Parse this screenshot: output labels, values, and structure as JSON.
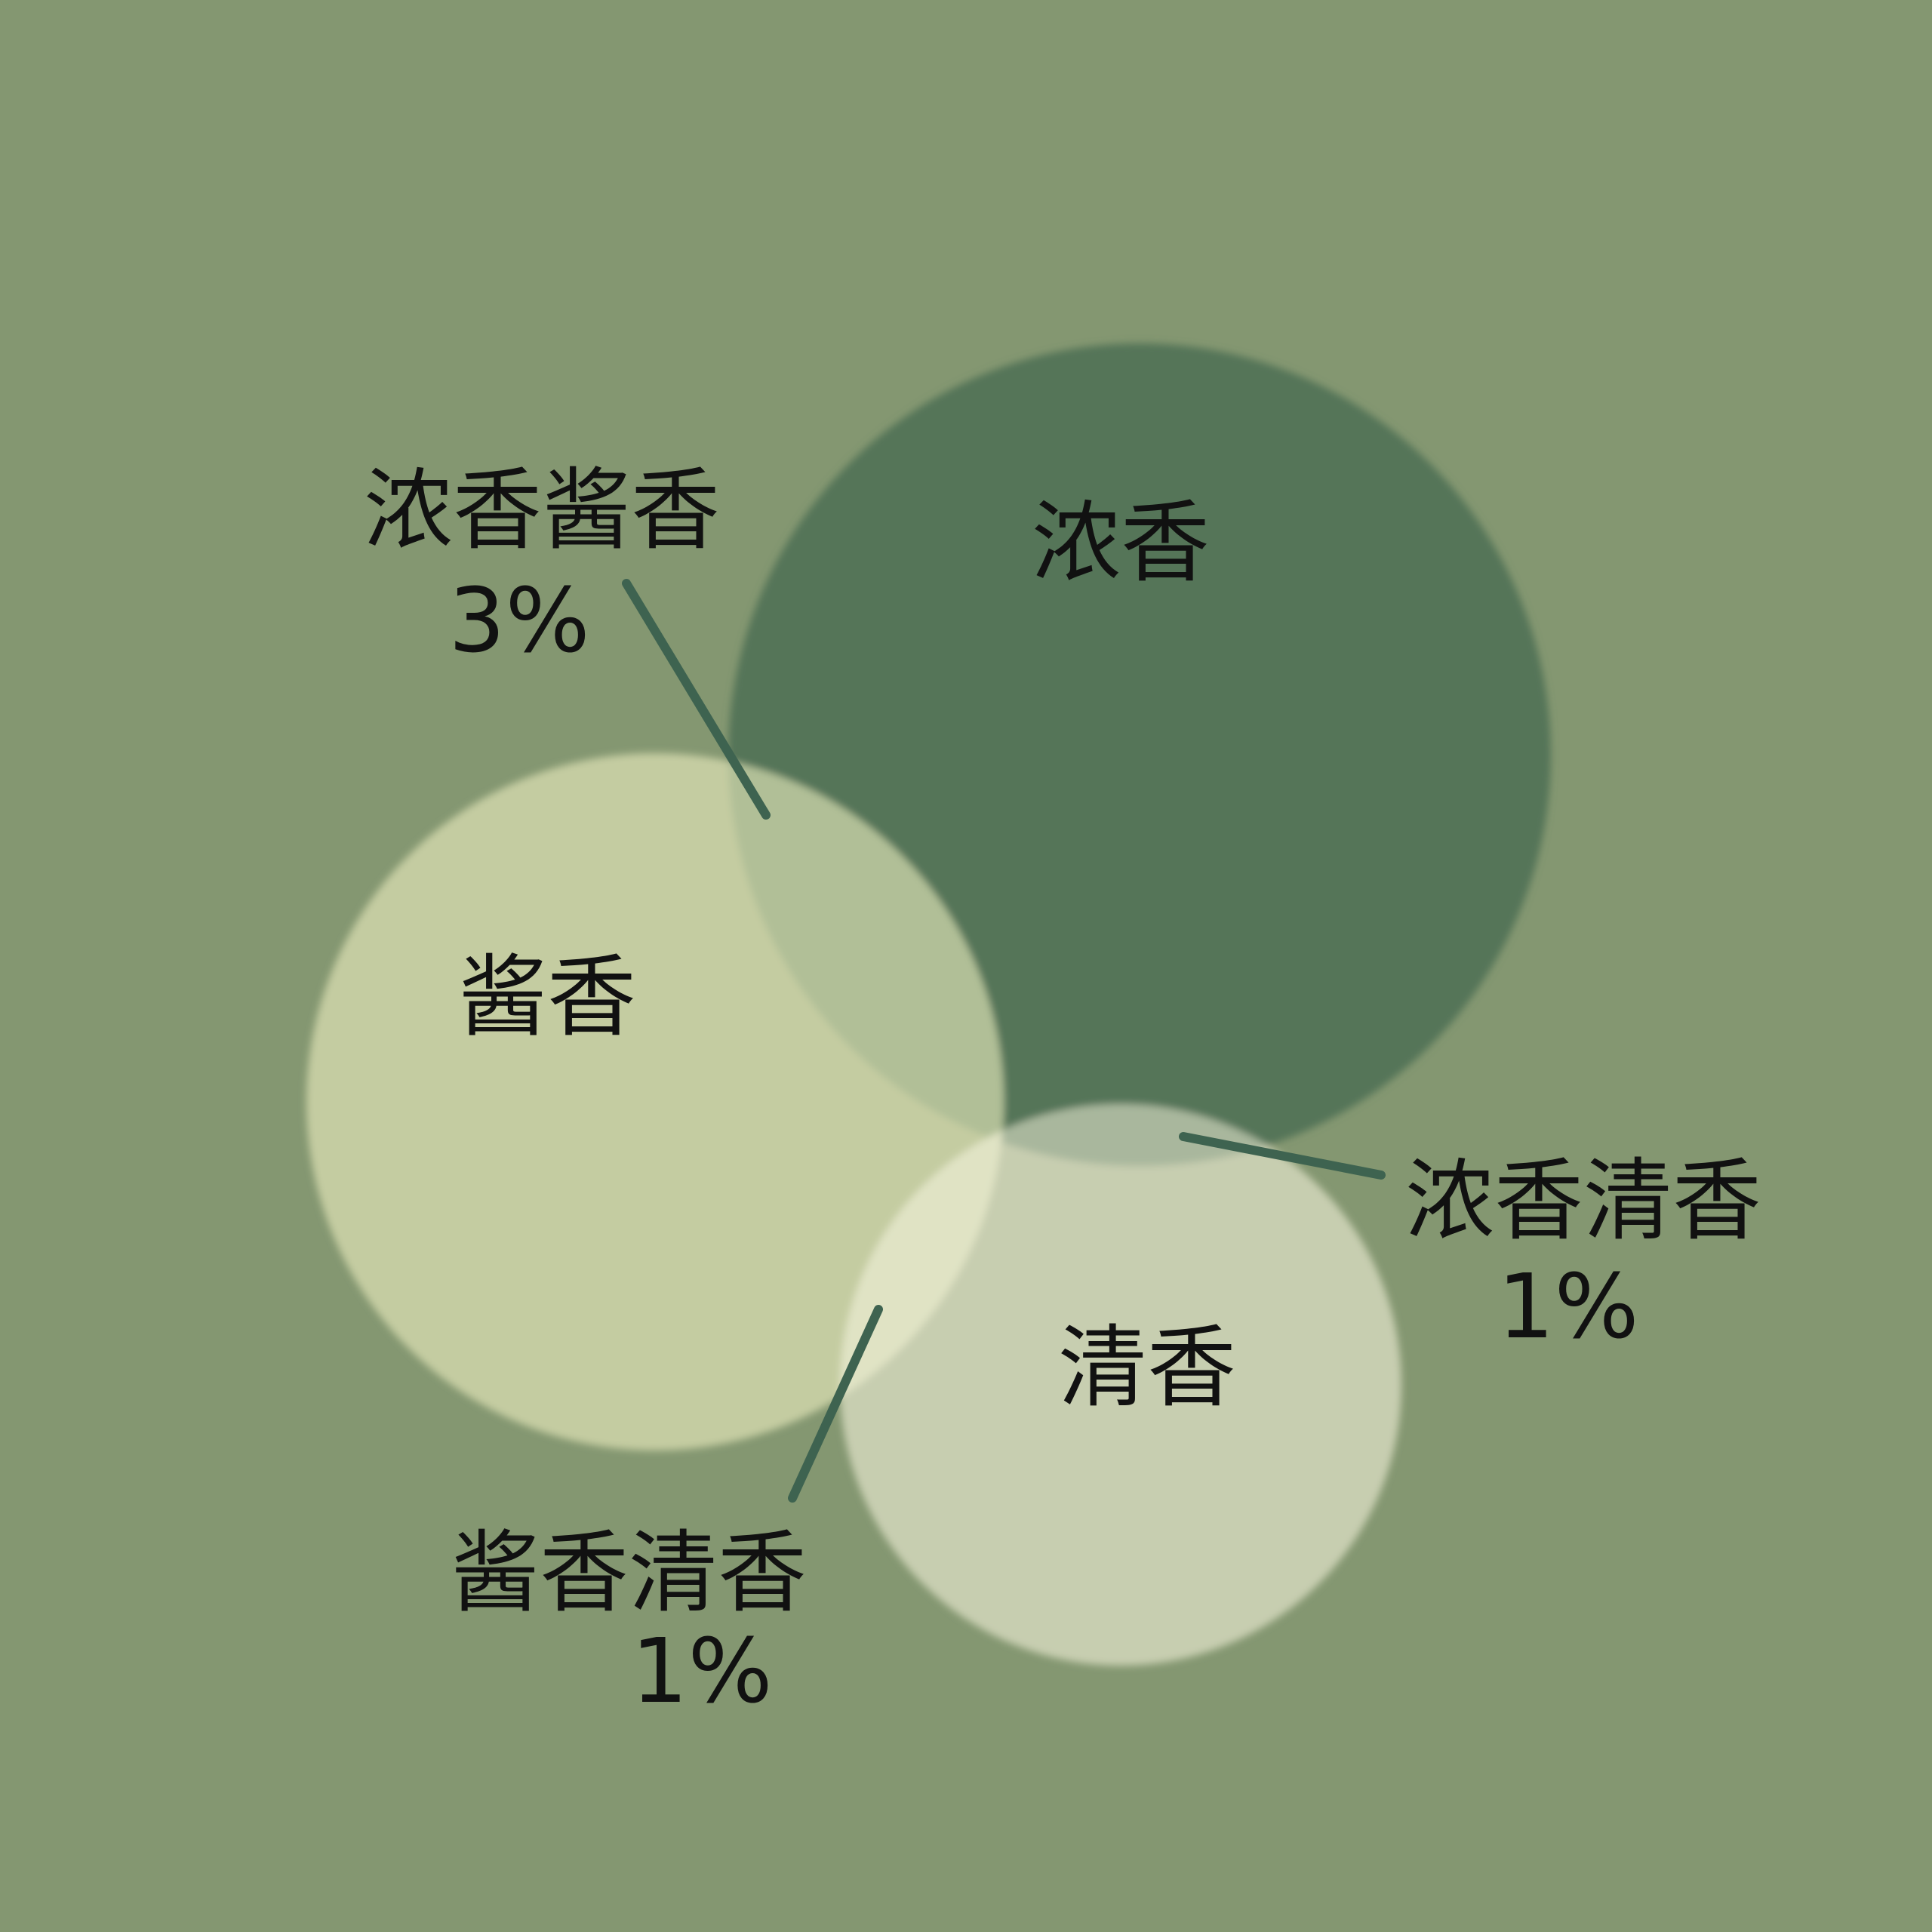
{
  "colors": {
    "background": "#849771",
    "nongxiang_circle": "#557559",
    "jiangxiang_circle": "#c4cca1",
    "qingxiang_circle": "#c7ceb0",
    "overlap_nong_jiang": "#b1bf97",
    "overlap_nong_qing": "#a9b79d",
    "overlap_jiang_qing": "#e0e3c4",
    "leader_line": "#3e6350",
    "text": "#111111"
  },
  "sets": {
    "nongxiang": "浓香",
    "jiangxiang": "酱香",
    "qingxiang": "清香"
  },
  "callouts": {
    "nong_jiang": {
      "name": "浓香酱香",
      "value": "3%"
    },
    "nong_qing": {
      "name": "浓香清香",
      "value": "1%"
    },
    "jiang_qing": {
      "name": "酱香清香",
      "value": "1%"
    }
  }
}
